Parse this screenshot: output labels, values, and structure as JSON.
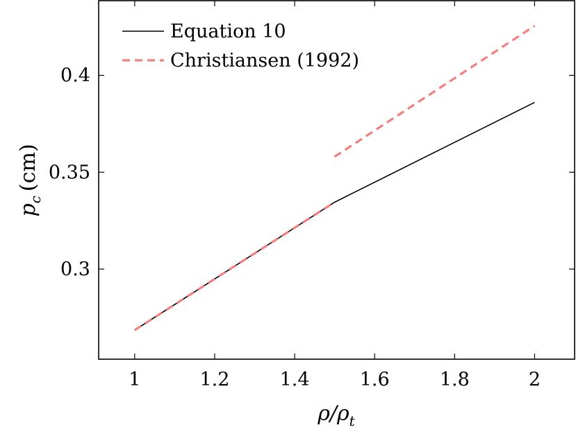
{
  "chart_data": {
    "type": "line",
    "title": "",
    "xlabel": "ρ/ρ",
    "xlabel_sub": "t",
    "ylabel": "p",
    "ylabel_sub": "c",
    "ylabel_unit": "(cm)",
    "xlim": [
      0.91,
      2.1
    ],
    "ylim": [
      0.2535,
      0.4385
    ],
    "xticks": [
      1,
      1.2,
      1.4,
      1.6,
      1.8,
      2
    ],
    "xtick_labels": [
      "1",
      "1.2",
      "1.4",
      "1.6",
      "1.8",
      "2"
    ],
    "yticks": [
      0.3,
      0.35,
      0.4
    ],
    "ytick_labels": [
      "0.3",
      "0.35",
      "0.4"
    ],
    "grid": false,
    "legend_position": "top-left",
    "series": [
      {
        "name": "Equation 10",
        "color": "#000000",
        "style": "solid",
        "segments": [
          {
            "x": [
              1,
              1.5,
              2
            ],
            "y": [
              0.2685,
              0.3345,
              0.386
            ]
          }
        ]
      },
      {
        "name": "Christiansen (1992)",
        "color": "#f47f7f",
        "style": "dashed",
        "segments": [
          {
            "x": [
              1,
              1.5
            ],
            "y": [
              0.2685,
              0.3345
            ]
          },
          {
            "x": [
              1.5,
              2
            ],
            "y": [
              0.358,
              0.4255
            ]
          }
        ]
      }
    ]
  }
}
